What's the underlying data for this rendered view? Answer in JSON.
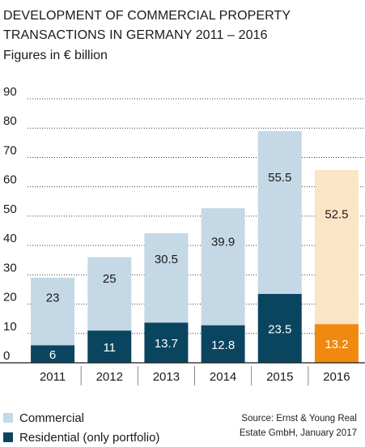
{
  "title_lines": [
    "DEVELOPMENT OF COMMERCIAL PROPERTY",
    "TRANSACTIONS IN GERMANY 2011 – 2016"
  ],
  "subtitle": "Figures in € billion",
  "source_lines": [
    "Source: Ernst & Young Real",
    "Estate GmbH, January 2017"
  ],
  "colors": {
    "commercial": "#c5d8e6",
    "residential": "#0a4560",
    "commercial_highlight": "#fce4c7",
    "residential_highlight": "#f0890f",
    "grid": "#3a3a3a"
  },
  "chart_data": {
    "type": "bar",
    "stacked": true,
    "categories": [
      "2011",
      "2012",
      "2013",
      "2014",
      "2015",
      "2016"
    ],
    "series": [
      {
        "name": "Residential (only portfolio)",
        "values": [
          6,
          11,
          13.7,
          12.8,
          23.5,
          13.2
        ],
        "labels": [
          "6",
          "11",
          "13.7",
          "12.8",
          "23.5",
          "13.2"
        ]
      },
      {
        "name": "Commercial",
        "values": [
          23,
          25,
          30.5,
          39.9,
          55.5,
          52.5
        ],
        "labels": [
          "23",
          "25",
          "30.5",
          "39.9",
          "55.5",
          "52.5"
        ]
      }
    ],
    "highlight_category": "2016",
    "ylim": [
      0,
      90
    ],
    "yticks": [
      0,
      10,
      20,
      30,
      40,
      50,
      60,
      70,
      80,
      90
    ],
    "grid": true,
    "grid_style": "dotted",
    "legend_position": "bottom-left"
  }
}
